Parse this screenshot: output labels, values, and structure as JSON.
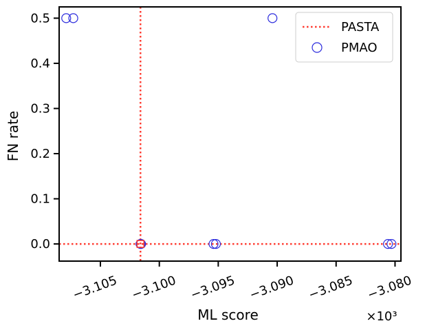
{
  "chart_data": {
    "type": "scatter",
    "xlabel": "ML score",
    "ylabel": "FN rate",
    "x_multiplier": "×10³",
    "xlim": [
      -3108.5,
      -3079.5
    ],
    "ylim": [
      -0.038,
      0.525
    ],
    "x_ticks": [
      -3105,
      -3100,
      -3095,
      -3090,
      -3085,
      -3080
    ],
    "x_tick_labels": [
      "−3.105",
      "−3.100",
      "−3.095",
      "−3.090",
      "−3.085",
      "−3.080"
    ],
    "y_ticks": [
      0.0,
      0.1,
      0.2,
      0.3,
      0.4,
      0.5
    ],
    "y_tick_labels": [
      "0.0",
      "0.1",
      "0.2",
      "0.3",
      "0.4",
      "0.5"
    ],
    "grid": false,
    "legend_position": "top-right",
    "reference": {
      "name": "PASTA",
      "color": "#ff3b30",
      "style": "dotted",
      "x": -3101.6,
      "y": 0.0,
      "marker": "square"
    },
    "series": [
      {
        "name": "PMAO",
        "marker": "open-circle",
        "color": "#2b2bdd",
        "points": [
          {
            "x": -3107.9,
            "y": 0.5
          },
          {
            "x": -3107.3,
            "y": 0.5
          },
          {
            "x": -3090.4,
            "y": 0.5
          },
          {
            "x": -3101.6,
            "y": 0.0
          },
          {
            "x": -3101.55,
            "y": 0.0
          },
          {
            "x": -3095.4,
            "y": 0.0
          },
          {
            "x": -3095.2,
            "y": 0.0
          },
          {
            "x": -3080.6,
            "y": 0.0
          },
          {
            "x": -3080.3,
            "y": 0.0
          }
        ]
      }
    ]
  }
}
